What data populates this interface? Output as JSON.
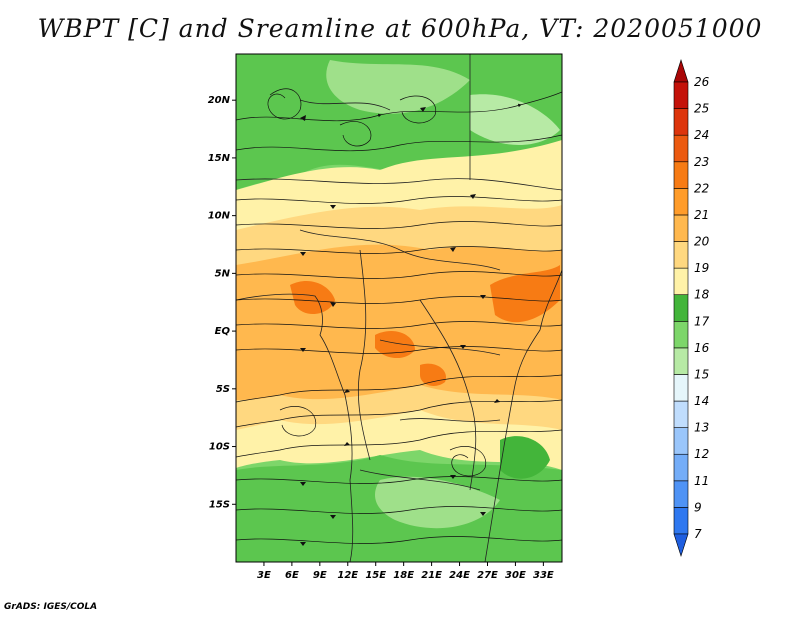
{
  "title": "WBPT [C] and Sreamline at 600hPa, VT: 2020051000",
  "credit": "GrADS: IGES/COLA",
  "lat_ticks": [
    "20N",
    "15N",
    "10N",
    "5N",
    "EQ",
    "5S",
    "10S",
    "15S"
  ],
  "lat_values": [
    20,
    15,
    10,
    5,
    0,
    -5,
    -10,
    -15
  ],
  "lon_ticks": [
    "3E",
    "6E",
    "9E",
    "12E",
    "15E",
    "18E",
    "21E",
    "24E",
    "27E",
    "30E",
    "33E"
  ],
  "lon_values": [
    3,
    6,
    9,
    12,
    15,
    18,
    21,
    24,
    27,
    30,
    33
  ],
  "colorbar": {
    "levels": [
      "7",
      "9",
      "11",
      "12",
      "13",
      "14",
      "15",
      "16",
      "17",
      "18",
      "19",
      "20",
      "21",
      "22",
      "23",
      "24",
      "25",
      "26"
    ],
    "colors": [
      "#1f5fe0",
      "#2f78f0",
      "#4f93f5",
      "#74adf8",
      "#9ac6fb",
      "#c0ddfd",
      "#e6f6fb",
      "#b7eaa5",
      "#7dd66a",
      "#43b53a",
      "#fff2a8",
      "#ffd880",
      "#ffb84e",
      "#ff9c2a",
      "#f77b14",
      "#ec5a10",
      "#dd350c",
      "#c4120a",
      "#a90607"
    ]
  },
  "map": {
    "lon_range": [
      0,
      35
    ],
    "lat_range": [
      -20,
      24
    ],
    "field": "wet-bulb potential temperature",
    "overlay": "streamlines at 600hPa"
  }
}
